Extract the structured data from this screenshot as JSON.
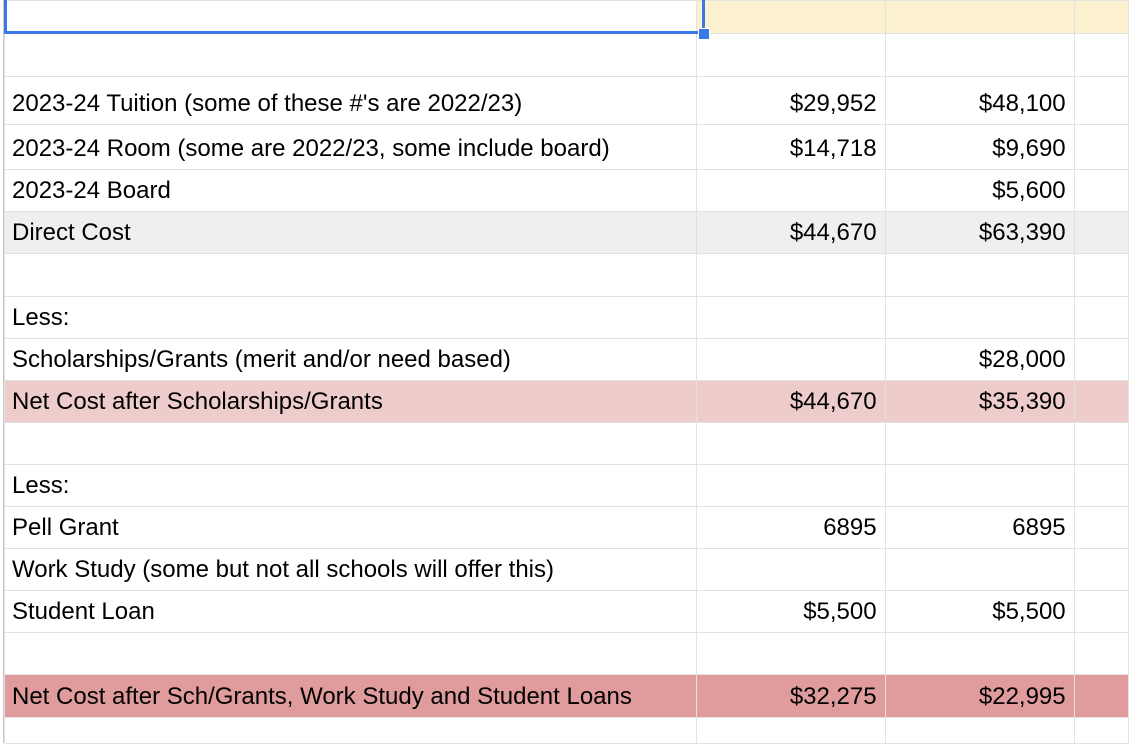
{
  "sheet": {
    "accent_color": "#3b78e7",
    "rows": [
      {
        "style": "yellow",
        "label": "",
        "b": "",
        "c": ""
      },
      {
        "style": "",
        "label": "",
        "b": "",
        "c": ""
      },
      {
        "style": "",
        "label": "2023-24 Tuition (some of these #'s are 2022/23)",
        "b": "$29,952",
        "c": "$48,100"
      },
      {
        "style": "",
        "label": "2023-24 Room (some are 2022/23, some include board)",
        "b": "$14,718",
        "c": "$9,690"
      },
      {
        "style": "",
        "label": "2023-24 Board",
        "b": "",
        "c": "$5,600"
      },
      {
        "style": "gray",
        "label": "Direct Cost",
        "b": "$44,670",
        "c": "$63,390"
      },
      {
        "style": "",
        "label": "",
        "b": "",
        "c": ""
      },
      {
        "style": "",
        "label": "Less:",
        "b": "",
        "c": ""
      },
      {
        "style": "",
        "label": "Scholarships/Grants (merit and/or need based)",
        "b": "",
        "c": "$28,000"
      },
      {
        "style": "pink",
        "label": "Net Cost after Scholarships/Grants",
        "b": "$44,670",
        "c": "$35,390"
      },
      {
        "style": "",
        "label": "",
        "b": "",
        "c": ""
      },
      {
        "style": "",
        "label": "Less:",
        "b": "",
        "c": ""
      },
      {
        "style": "",
        "label": "Pell Grant",
        "b": "6895",
        "c": "6895"
      },
      {
        "style": "",
        "label": "Work Study (some but not all schools will offer this)",
        "b": "",
        "c": ""
      },
      {
        "style": "",
        "label": "Student Loan",
        "b": "$5,500",
        "c": "$5,500"
      },
      {
        "style": "",
        "label": "",
        "b": "",
        "c": ""
      },
      {
        "style": "red",
        "label": "Net Cost after Sch/Grants, Work Study and Student Loans",
        "b": "$32,275",
        "c": "$22,995"
      },
      {
        "style": "",
        "label": "",
        "b": "",
        "c": ""
      }
    ]
  }
}
